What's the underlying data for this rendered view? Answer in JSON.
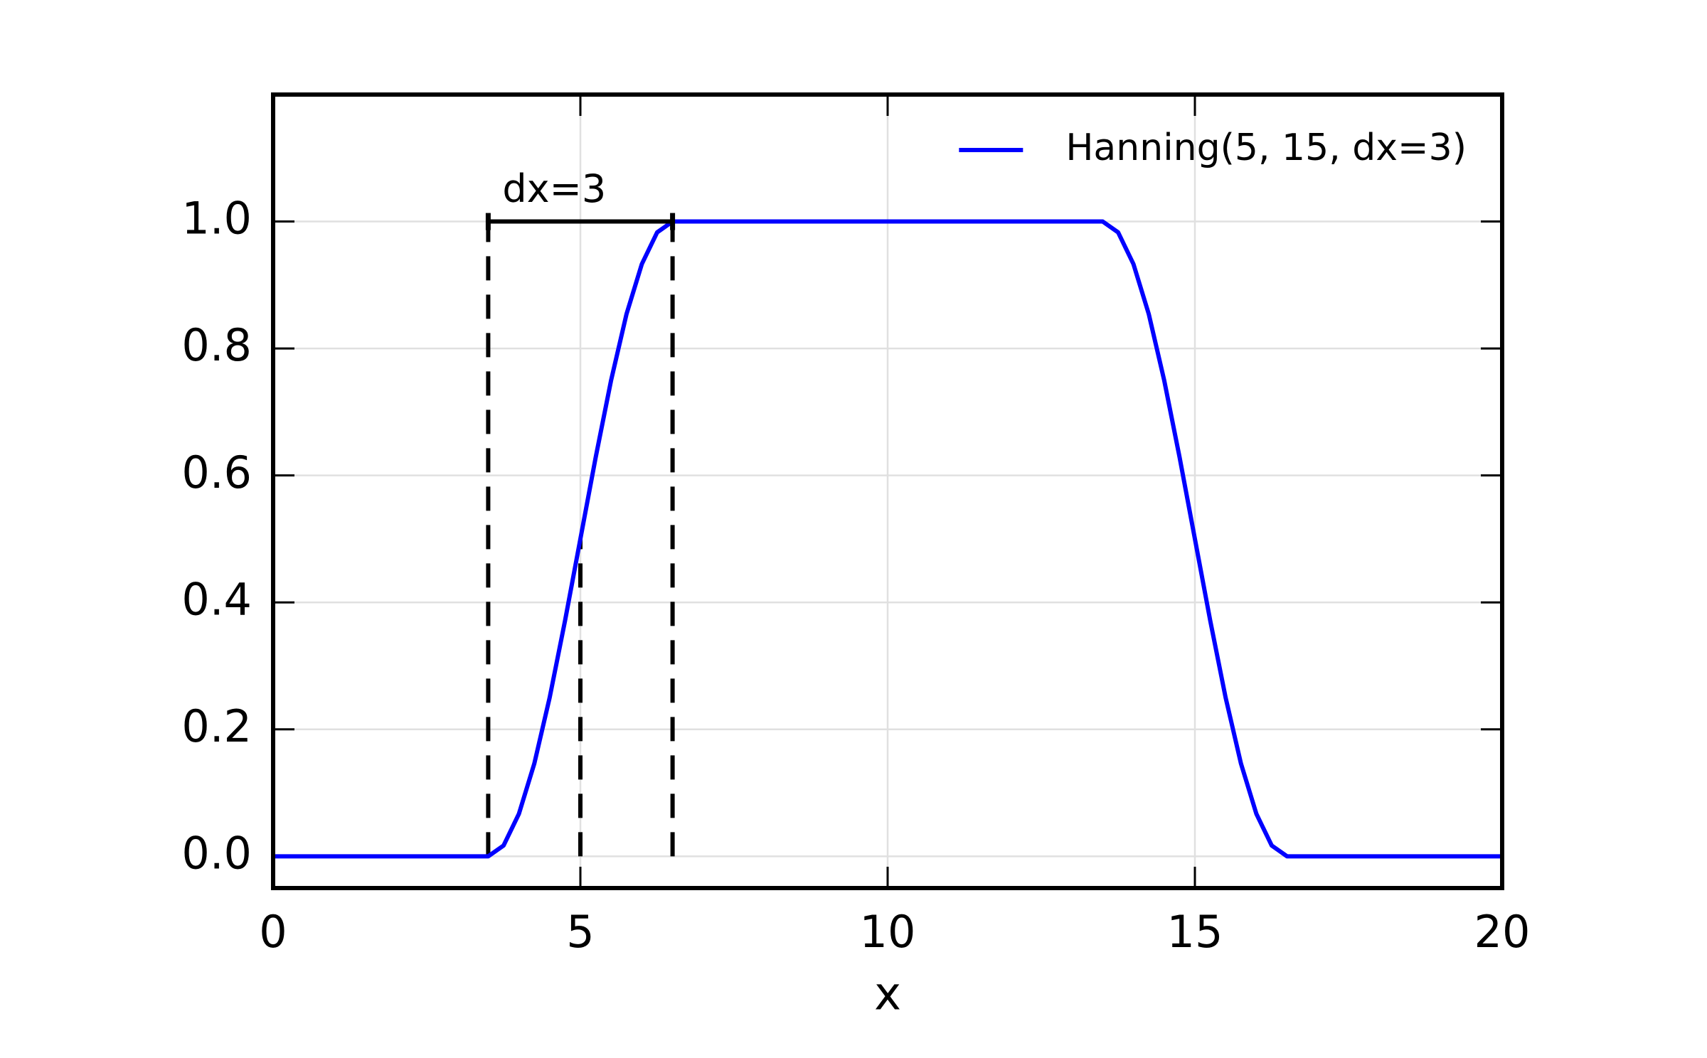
{
  "chart_data": {
    "type": "line",
    "xlabel": "x",
    "x": [
      0,
      3.5,
      3.75,
      4,
      4.25,
      4.5,
      4.75,
      5,
      5.25,
      5.5,
      5.75,
      6,
      6.25,
      6.5,
      13.5,
      13.75,
      14,
      14.25,
      14.5,
      14.75,
      15,
      15.25,
      15.5,
      15.75,
      16,
      16.25,
      16.5,
      20
    ],
    "series": [
      {
        "name": "Hanning(5, 15, dx=3)",
        "color": "#0000ff",
        "values": [
          0,
          0,
          0.017,
          0.067,
          0.146,
          0.25,
          0.371,
          0.5,
          0.629,
          0.75,
          0.854,
          0.933,
          0.983,
          1,
          1,
          0.983,
          0.933,
          0.854,
          0.75,
          0.629,
          0.5,
          0.371,
          0.25,
          0.146,
          0.067,
          0.017,
          0,
          0
        ]
      }
    ],
    "vlines": [
      {
        "x": 3.5,
        "y": [
          0,
          1
        ]
      },
      {
        "x": 5,
        "y": [
          0,
          0.5
        ]
      },
      {
        "x": 6.5,
        "y": [
          0,
          1
        ]
      }
    ],
    "span": {
      "x": [
        3.5,
        6.5
      ],
      "y": 1,
      "label": "dx=3"
    },
    "xlim": [
      0,
      20
    ],
    "ylim": [
      -0.05,
      1.2
    ],
    "xticks": [
      0,
      5,
      10,
      15,
      20
    ],
    "yticks": [
      {
        "value": 0,
        "label": "0.0"
      },
      0.2,
      0.4,
      0.6,
      0.8,
      {
        "value": 1,
        "label": "1.0"
      }
    ],
    "grid": true,
    "legend": "upper right"
  }
}
